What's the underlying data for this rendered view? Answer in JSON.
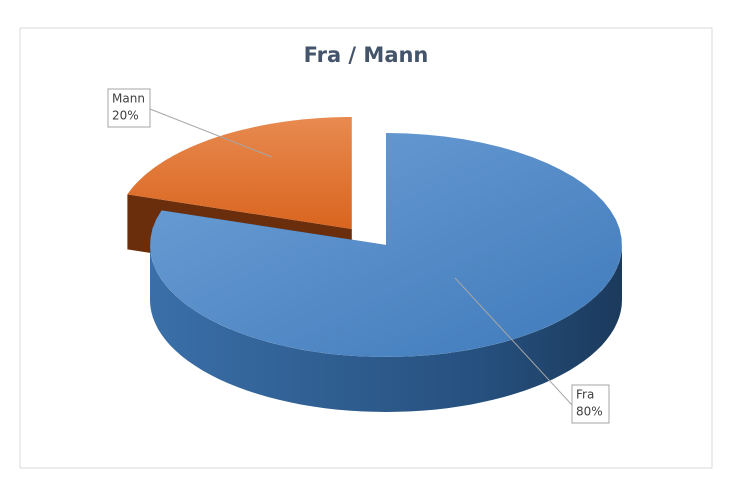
{
  "chart_data": {
    "type": "pie3d",
    "title": "Fra / Mann",
    "categories": [
      "Fra",
      "Mann"
    ],
    "values": [
      80,
      20
    ],
    "value_labels": [
      "80%",
      "20%"
    ],
    "colors": [
      "#4f87c5",
      "#e0702a"
    ]
  }
}
